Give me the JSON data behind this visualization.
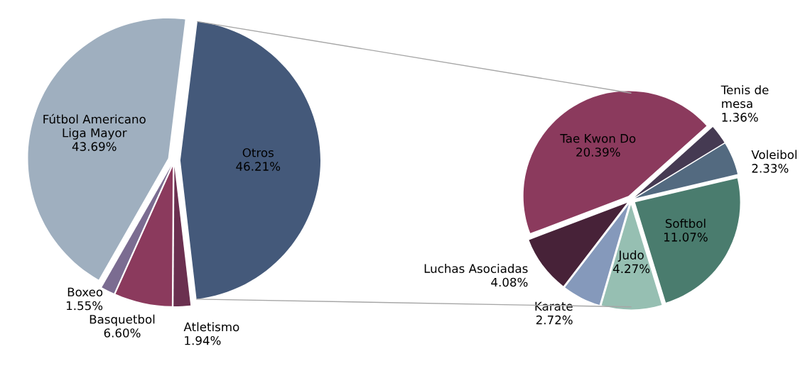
{
  "chart_data": [
    {
      "type": "pie",
      "categories": [
        "Otros",
        "Atletismo",
        "Basquetbol",
        "Boxeo",
        "Fútbol Americano\nLiga Mayor"
      ],
      "values": [
        46.21,
        1.94,
        6.6,
        1.55,
        43.69
      ],
      "colors": [
        "#44597a",
        "#6b3050",
        "#8b3a5d",
        "#7b6c91",
        "#9fafbf"
      ],
      "value_labels": [
        "46.21%",
        "1.94%",
        "6.60%",
        "1.55%",
        "43.69%"
      ]
    },
    {
      "type": "pie",
      "categories": [
        "Tenis de\nmesa",
        "Voleibol",
        "Softbol",
        "Judo",
        "Karate",
        "Luchas Asociadas",
        "Tae Kwon Do"
      ],
      "values": [
        1.36,
        2.33,
        11.07,
        4.27,
        2.72,
        4.08,
        20.39
      ],
      "colors": [
        "#453a52",
        "#536a80",
        "#4a7c6e",
        "#96bfb2",
        "#8599bb",
        "#472238",
        "#8b3a5d"
      ],
      "value_labels": [
        "1.36%",
        "2.33%",
        "11.07%",
        "4.27%",
        "2.72%",
        "4.08%",
        "20.39%"
      ]
    }
  ]
}
